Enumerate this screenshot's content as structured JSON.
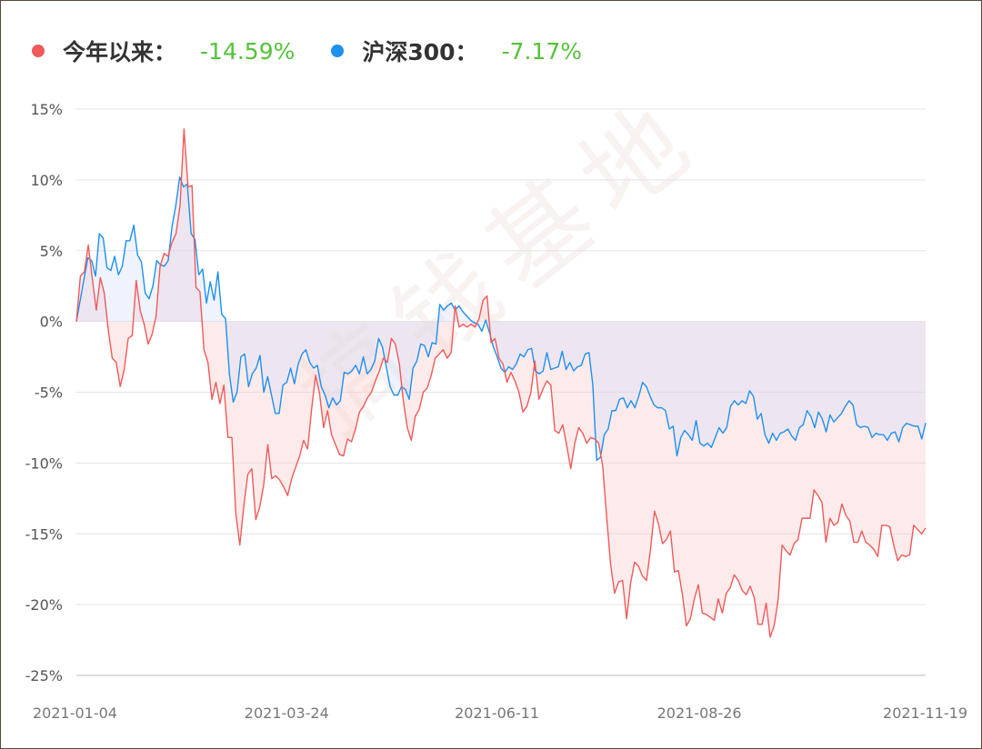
{
  "legend": [
    {
      "label": "今年以来：",
      "value": "-14.59%",
      "color": "#f05a5a"
    },
    {
      "label": "沪深300：",
      "value": "-7.17%",
      "color": "#1e90f0"
    }
  ],
  "value_color": "#55c23a",
  "watermark": "搞钱基地",
  "chart_data": {
    "type": "area",
    "y_ticks": [
      "15%",
      "10%",
      "5%",
      "0%",
      "-5%",
      "-10%",
      "-15%",
      "-20%",
      "-25%"
    ],
    "ylim": [
      -25,
      15
    ],
    "x_ticks": [
      "2021-01-04",
      "2021-03-24",
      "2021-06-11",
      "2021-08-26",
      "2021-11-19"
    ],
    "x_range": [
      "2021-01-04",
      "2021-11-19"
    ],
    "grid": true,
    "series": [
      {
        "name": "今年以来",
        "color": "#f05a5a",
        "fill": "rgba(250,205,205,0.4)",
        "values": [
          0,
          3.2,
          3.5,
          5.4,
          3.0,
          0.8,
          3.1,
          2.0,
          -0.6,
          -2.6,
          -2.9,
          -4.6,
          -3.4,
          -1.2,
          -1.0,
          2.9,
          0.8,
          -0.2,
          -1.6,
          -0.9,
          0.4,
          3.9,
          4.8,
          4.6,
          5.6,
          6.2,
          8.2,
          13.6,
          9.5,
          9.6,
          2.4,
          2.1,
          -2.0,
          -2.9,
          -5.5,
          -4.3,
          -5.8,
          -4.5,
          -8.2,
          -8.2,
          -13.6,
          -15.8,
          -13.0,
          -10.8,
          -10.4,
          -14.0,
          -13.1,
          -11.5,
          -8.7,
          -11.1,
          -10.9,
          -11.2,
          -11.7,
          -12.3,
          -11.1,
          -10.3,
          -9.5,
          -8.4,
          -9.0,
          -6.2,
          -3.8,
          -5.1,
          -7.5,
          -6.3,
          -8.0,
          -8.7,
          -9.4,
          -9.5,
          -8.3,
          -8.5,
          -7.6,
          -6.4,
          -6.0,
          -5.4,
          -5.0,
          -4.2,
          -3.5,
          -2.6,
          -2.9,
          -1.2,
          -1.6,
          -3.0,
          -5.6,
          -7.5,
          -8.4,
          -6.7,
          -6.2,
          -5.0,
          -4.7,
          -3.8,
          -2.6,
          -2.3,
          -2.0,
          -2.6,
          -2.2,
          1.1,
          -0.4,
          -0.2,
          -0.4,
          -0.2,
          -0.4,
          0.2,
          1.5,
          1.8,
          -1.5,
          -1.2,
          -2.6,
          -3.0,
          -4.3,
          -3.6,
          -4.2,
          -5.0,
          -6.4,
          -6.0,
          -5.0,
          -2.8,
          -5.5,
          -4.8,
          -4.2,
          -4.5,
          -7.7,
          -7.9,
          -7.3,
          -8.8,
          -10.4,
          -8.6,
          -7.5,
          -7.9,
          -8.6,
          -8.2,
          -8.3,
          -8.6,
          -10.2,
          -13.8,
          -17.2,
          -19.2,
          -18.4,
          -18.3,
          -21.0,
          -18.5,
          -17.0,
          -17.3,
          -18.0,
          -18.3,
          -16.1,
          -13.4,
          -14.3,
          -15.7,
          -15.4,
          -14.8,
          -17.7,
          -17.6,
          -19.3,
          -21.5,
          -21.0,
          -19.6,
          -18.6,
          -20.6,
          -20.7,
          -20.9,
          -21.1,
          -19.6,
          -20.6,
          -19.2,
          -18.8,
          -17.9,
          -18.3,
          -19.0,
          -19.3,
          -18.7,
          -19.5,
          -21.4,
          -21.4,
          -19.9,
          -22.3,
          -21.5,
          -19.7,
          -15.8,
          -16.2,
          -16.5,
          -15.7,
          -15.4,
          -13.9,
          -13.9,
          -13.9,
          -11.9,
          -12.3,
          -12.8,
          -15.6,
          -13.9,
          -14.4,
          -14.2,
          -12.9,
          -13.7,
          -14.1,
          -15.6,
          -15.6,
          -14.8,
          -15.6,
          -15.8,
          -16.1,
          -16.6,
          -14.4,
          -14.4,
          -14.5,
          -15.8,
          -16.9,
          -16.5,
          -16.6,
          -16.5,
          -14.4,
          -14.7,
          -15.0,
          -14.59
        ]
      },
      {
        "name": "沪深300",
        "color": "#1e90f0",
        "fill": "rgba(205,220,250,0.35)",
        "values": [
          0,
          1.5,
          3.0,
          4.5,
          4.3,
          3.2,
          6.2,
          5.9,
          3.8,
          3.6,
          4.6,
          3.3,
          3.9,
          5.7,
          5.7,
          6.8,
          4.7,
          4.2,
          2.0,
          1.6,
          2.5,
          4.3,
          4.0,
          3.9,
          4.3,
          6.7,
          8.2,
          10.2,
          9.5,
          9.7,
          6.2,
          5.8,
          3.3,
          3.7,
          1.3,
          2.8,
          1.5,
          3.5,
          0.5,
          0.2,
          -3.7,
          -5.7,
          -5.0,
          -2.5,
          -2.3,
          -4.6,
          -3.7,
          -3.3,
          -2.4,
          -5.0,
          -3.9,
          -5.2,
          -6.5,
          -6.5,
          -4.5,
          -4.3,
          -3.3,
          -4.4,
          -3.0,
          -2.3,
          -2.0,
          -2.9,
          -3.3,
          -3.1,
          -4.6,
          -5.2,
          -6.1,
          -5.4,
          -5.9,
          -5.6,
          -3.6,
          -3.7,
          -3.5,
          -3.1,
          -3.7,
          -2.5,
          -3.7,
          -3.4,
          -2.8,
          -1.2,
          -1.8,
          -3.2,
          -4.6,
          -5.2,
          -5.2,
          -4.6,
          -4.8,
          -5.5,
          -3.3,
          -2.8,
          -1.6,
          -1.7,
          -2.5,
          -1.5,
          -1.6,
          1.2,
          0.8,
          1.1,
          1.3,
          0.8,
          1.1,
          0.7,
          0.4,
          0.1,
          -0.1,
          -0.2,
          -0.7,
          0.1,
          -0.8,
          -1.8,
          -2.5,
          -3.3,
          -3.6,
          -3.2,
          -3.4,
          -3.0,
          -2.3,
          -2.5,
          -2.0,
          -1.9,
          -3.5,
          -3.7,
          -3.5,
          -2.2,
          -3.4,
          -3.3,
          -3.2,
          -2.1,
          -3.4,
          -2.9,
          -3.5,
          -3.2,
          -3.1,
          -2.3,
          -2.2,
          -4.5,
          -9.8,
          -9.6,
          -8.0,
          -7.6,
          -6.3,
          -6.3,
          -5.5,
          -5.4,
          -6.1,
          -5.6,
          -6.1,
          -5.3,
          -4.3,
          -4.6,
          -5.3,
          -5.9,
          -6.1,
          -6.1,
          -6.3,
          -7.6,
          -7.4,
          -9.5,
          -8.2,
          -7.7,
          -8.0,
          -8.4,
          -7.0,
          -8.6,
          -8.8,
          -8.6,
          -8.9,
          -8.2,
          -7.5,
          -7.9,
          -7.5,
          -6.0,
          -5.6,
          -5.9,
          -5.6,
          -5.8,
          -4.9,
          -5.3,
          -6.9,
          -6.5,
          -8.0,
          -8.6,
          -7.9,
          -8.4,
          -7.9,
          -7.8,
          -7.6,
          -8.1,
          -8.4,
          -7.5,
          -7.3,
          -6.3,
          -6.7,
          -7.5,
          -6.4,
          -6.9,
          -7.8,
          -6.6,
          -7.1,
          -6.8,
          -6.5,
          -6.0,
          -5.6,
          -5.9,
          -7.3,
          -7.5,
          -7.4,
          -7.5,
          -8.2,
          -7.9,
          -8.0,
          -8.0,
          -8.4,
          -7.9,
          -7.8,
          -8.5,
          -7.5,
          -7.2,
          -7.3,
          -7.4,
          -7.4,
          -8.3,
          -7.17
        ]
      }
    ]
  }
}
